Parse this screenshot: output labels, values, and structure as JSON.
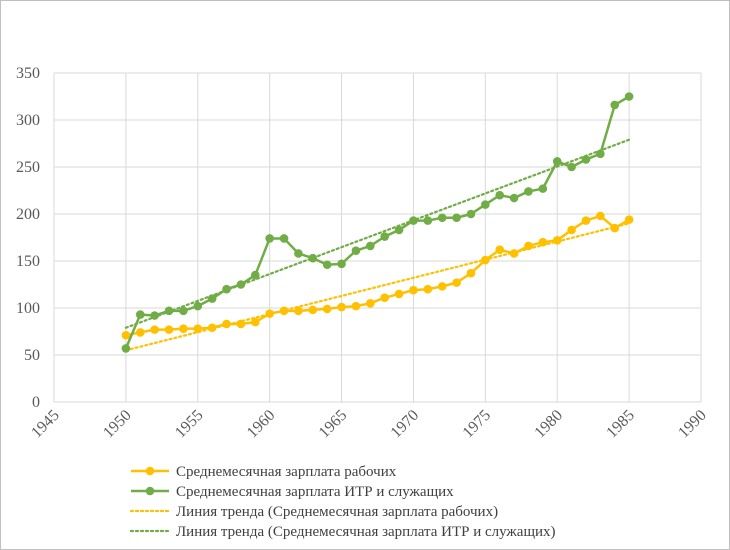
{
  "chart_data": {
    "type": "line",
    "title": "",
    "xlabel": "",
    "ylabel": "",
    "xlim": [
      1945,
      1990
    ],
    "ylim": [
      0,
      350
    ],
    "x_ticks": [
      1945,
      1950,
      1955,
      1960,
      1965,
      1970,
      1975,
      1980,
      1985,
      1990
    ],
    "y_ticks": [
      0,
      50,
      100,
      150,
      200,
      250,
      300,
      350
    ],
    "grid": "horizontal",
    "legend_position": "bottom",
    "x": [
      1950,
      1951,
      1952,
      1953,
      1954,
      1955,
      1956,
      1957,
      1958,
      1959,
      1960,
      1961,
      1962,
      1963,
      1964,
      1965,
      1966,
      1967,
      1968,
      1969,
      1970,
      1971,
      1972,
      1973,
      1974,
      1975,
      1976,
      1977,
      1978,
      1979,
      1980,
      1981,
      1982,
      1983,
      1984,
      1985
    ],
    "series": [
      {
        "name": "Среднемесячная зарплата рабочих",
        "color": "#ffc000",
        "values": [
          71,
          74,
          77,
          77,
          78,
          78,
          79,
          83,
          83,
          85,
          94,
          97,
          97,
          98,
          99,
          101,
          102,
          105,
          111,
          115,
          119,
          120,
          123,
          127,
          137,
          151,
          162,
          158,
          166,
          170,
          172,
          183,
          193,
          198,
          185,
          194
        ]
      },
      {
        "name": "Среднемесячная зарплата ИТР и служащих",
        "color": "#70ad47",
        "values": [
          57,
          93,
          92,
          97,
          97,
          102,
          110,
          120,
          125,
          135,
          174,
          174,
          158,
          153,
          146,
          147,
          161,
          166,
          176,
          183,
          193,
          193,
          196,
          196,
          200,
          210,
          220,
          217,
          224,
          227,
          256,
          250,
          258,
          264,
          316,
          325
        ]
      }
    ],
    "trendlines": [
      {
        "name": "Линия тренда (Среднемесячная зарплата рабочих)",
        "color": "#ffc000",
        "x": [
          1950,
          1985
        ],
        "values": [
          55,
          190
        ]
      },
      {
        "name": "Линия тренда (Среднемесячная зарплата ИТР и служащих)",
        "color": "#70ad47",
        "x": [
          1950,
          1985
        ],
        "values": [
          79,
          279
        ]
      }
    ]
  }
}
